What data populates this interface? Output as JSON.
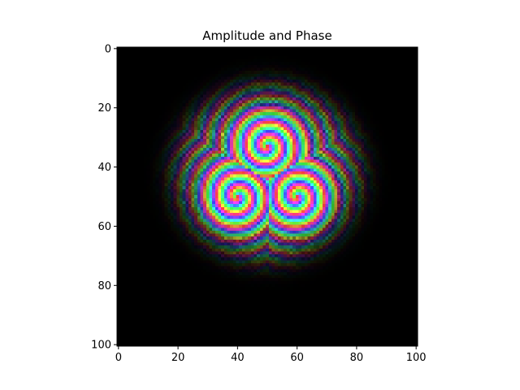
{
  "chart_data": {
    "type": "heatmap",
    "title": "Amplitude and Phase",
    "xlabel": "",
    "ylabel": "",
    "grid": false,
    "xlim": [
      -0.5,
      100.5
    ],
    "ylim": [
      100.5,
      -0.5
    ],
    "x_ticks": [
      0,
      20,
      40,
      60,
      80,
      100
    ],
    "y_ticks": [
      0,
      20,
      40,
      60,
      80,
      100
    ],
    "colormap": "hsv phase hue, brightness = amplitude",
    "background_color": "#000000",
    "vortices": [
      {
        "x": 50,
        "y": 33
      },
      {
        "x": 40,
        "y": 50
      },
      {
        "x": 60,
        "y": 50
      }
    ]
  }
}
